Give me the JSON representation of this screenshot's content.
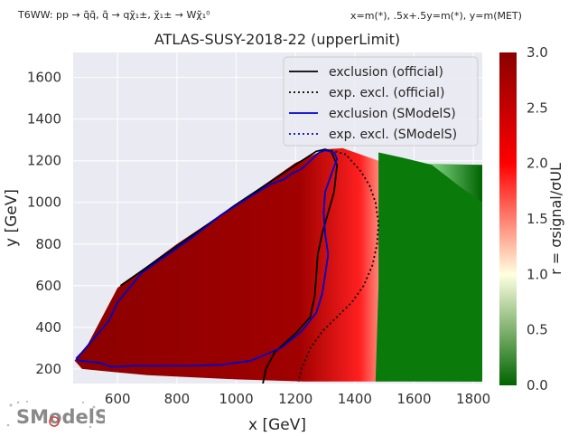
{
  "header": {
    "process": "T6WW: pp → q̃q̃, q̃ → qχ̃₁±, χ̃₁± → Wχ̃₁⁰",
    "mass_map": "x=m(*), .5x+.5y=m(*), y=m(MET)"
  },
  "logo": {
    "text": "SModelS"
  },
  "chart_data": {
    "type": "heatmap",
    "title": "ATLAS-SUSY-2018-22 (upperLimit)",
    "xlabel": "x [GeV]",
    "ylabel": "y [GeV]",
    "xlim": [
      450,
      1830
    ],
    "ylim": [
      130,
      1720
    ],
    "x_ticks": [
      600,
      800,
      1000,
      1200,
      1400,
      1600,
      1800
    ],
    "y_ticks": [
      200,
      400,
      600,
      800,
      1000,
      1200,
      1400,
      1600
    ],
    "grid": true,
    "legend_position": "top-right",
    "colorbar": {
      "label": "r = σsignal/σUL",
      "range": [
        0.0,
        3.0
      ],
      "ticks": [
        0.0,
        0.5,
        1.0,
        1.5,
        2.0,
        2.5,
        3.0
      ],
      "tick_labels": [
        "0.0",
        "0.5",
        "1.0",
        "1.5",
        "2.0",
        "2.5",
        "3.0"
      ],
      "colors": [
        "#006400",
        "#FFFFE0",
        "#FF0000",
        "#8B0000"
      ]
    },
    "series": [
      {
        "name": "exclusion (official)",
        "color": "#000000",
        "style": "solid",
        "x": [
          610,
          700,
          800,
          900,
          1000,
          1100,
          1200,
          1270,
          1300,
          1320,
          1340,
          1330,
          1310,
          1290,
          1275,
          1270,
          1265,
          1250,
          1200,
          1130,
          1100,
          1090
        ],
        "y": [
          600,
          690,
          790,
          890,
          990,
          1085,
          1180,
          1245,
          1255,
          1245,
          1180,
          1050,
          950,
          850,
          750,
          650,
          550,
          450,
          370,
          280,
          200,
          130
        ]
      },
      {
        "name": "exp. excl. (official)",
        "color": "#000000",
        "style": "dotted",
        "x": [
          1320,
          1370,
          1420,
          1450,
          1470,
          1480,
          1475,
          1460,
          1430,
          1390,
          1340,
          1290,
          1250,
          1220,
          1210
        ],
        "y": [
          1250,
          1230,
          1150,
          1080,
          1000,
          900,
          800,
          700,
          600,
          520,
          450,
          380,
          300,
          200,
          140
        ]
      },
      {
        "name": "exclusion (SModelS)",
        "color": "#0000CC",
        "style": "solid",
        "x": [
          460,
          480,
          510,
          540,
          570,
          600,
          640,
          680,
          750,
          850,
          950,
          1050,
          1120,
          1160,
          1190,
          1220,
          1250,
          1280,
          1300,
          1330,
          1340,
          1325,
          1300,
          1295,
          1300,
          1310,
          1300,
          1290,
          1270,
          1220,
          1150,
          1050,
          950,
          850,
          750,
          650,
          580,
          540,
          500,
          470,
          460
        ],
        "y": [
          250,
          280,
          330,
          380,
          430,
          520,
          590,
          660,
          730,
          830,
          940,
          1030,
          1090,
          1110,
          1140,
          1160,
          1200,
          1240,
          1250,
          1240,
          1210,
          1150,
          1050,
          950,
          850,
          750,
          650,
          560,
          470,
          380,
          300,
          240,
          220,
          215,
          215,
          215,
          210,
          230,
          235,
          240,
          250
        ]
      },
      {
        "name": "exp. excl. (SModelS)",
        "color": "#0000CC",
        "style": "dotted",
        "x": [],
        "y": []
      }
    ]
  }
}
